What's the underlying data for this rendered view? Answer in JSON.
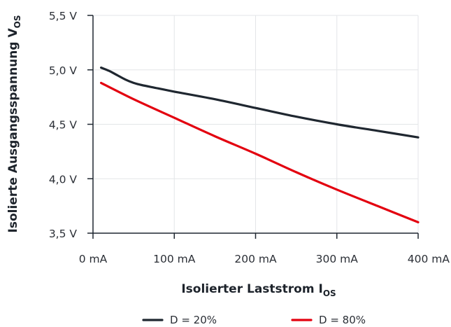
{
  "chart_data": {
    "type": "line",
    "title": "",
    "xlabel": "Isolierter Laststrom I",
    "xlabel_subscript": "OS",
    "ylabel": "Isolierte Ausgangsspannung V",
    "ylabel_subscript": "OS",
    "xlim": [
      0,
      400
    ],
    "ylim": [
      3.5,
      5.5
    ],
    "x_ticks": [
      0,
      100,
      200,
      300,
      400
    ],
    "x_tick_labels": [
      "0 mA",
      "100 mA",
      "200 mA",
      "300 mA",
      "400 mA"
    ],
    "y_ticks": [
      3.5,
      4.0,
      4.5,
      5.0,
      5.5
    ],
    "y_tick_labels": [
      "3,5 V",
      "4,0 V",
      "4,5 V",
      "5,0 V",
      "5,5 V"
    ],
    "grid": true,
    "legend_position": "bottom",
    "series": [
      {
        "name": "D = 20%",
        "color": "#1f2730",
        "x": [
          10,
          20,
          30,
          40,
          50,
          60,
          80,
          100,
          150,
          200,
          250,
          300,
          350,
          400
        ],
        "y": [
          5.02,
          4.99,
          4.95,
          4.91,
          4.88,
          4.86,
          4.83,
          4.8,
          4.73,
          4.65,
          4.57,
          4.5,
          4.44,
          4.38
        ]
      },
      {
        "name": "D = 80%",
        "color": "#e3000f",
        "x": [
          10,
          50,
          100,
          150,
          200,
          250,
          300,
          350,
          400
        ],
        "y": [
          4.88,
          4.73,
          4.56,
          4.39,
          4.23,
          4.06,
          3.9,
          3.75,
          3.6
        ]
      }
    ]
  }
}
